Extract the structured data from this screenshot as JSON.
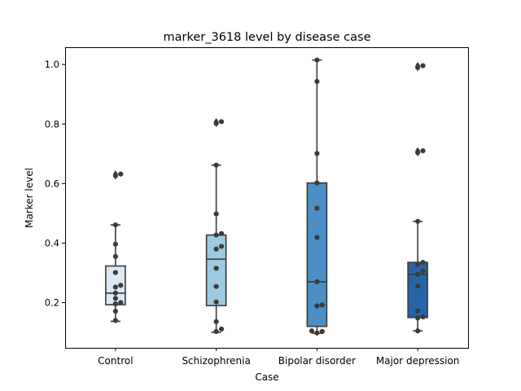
{
  "chart_data": {
    "type": "box",
    "title": "marker_3618 level by disease case",
    "xlabel": "Case",
    "ylabel": "Marker level",
    "ylim": [
      0.048,
      1.058
    ],
    "yticks": [
      0.2,
      0.4,
      0.6,
      0.8,
      1.0
    ],
    "ytick_labels": [
      "0.2",
      "0.4",
      "0.6",
      "0.8",
      "1.0"
    ],
    "grid": false,
    "categories": [
      "Control",
      "Schizophrenia",
      "Bipolar disorder",
      "Major depression"
    ],
    "colors": [
      "#dbe9f6",
      "#9ecae1",
      "#4b8fc4",
      "#2565a7"
    ],
    "box_stats": [
      {
        "q1": 0.193,
        "median": 0.232,
        "q3": 0.323,
        "whisker_low": 0.137,
        "whisker_high": 0.461,
        "fliers": [
          0.632,
          0.626
        ]
      },
      {
        "q1": 0.19,
        "median": 0.346,
        "q3": 0.427,
        "whisker_low": 0.1,
        "whisker_high": 0.662,
        "fliers": [
          0.808,
          0.802
        ]
      },
      {
        "q1": 0.12,
        "median": 0.27,
        "q3": 0.602,
        "whisker_low": 0.097,
        "whisker_high": 1.015,
        "fliers": []
      },
      {
        "q1": 0.15,
        "median": 0.295,
        "q3": 0.335,
        "whisker_low": 0.105,
        "whisker_high": 0.473,
        "fliers": [
          0.996,
          0.99,
          0.71,
          0.704
        ]
      }
    ],
    "points": [
      [
        0.632,
        0.626,
        0.461,
        0.396,
        0.355,
        0.301,
        0.258,
        0.252,
        0.232,
        0.214,
        0.2,
        0.196,
        0.171,
        0.14
      ],
      [
        0.808,
        0.802,
        0.662,
        0.498,
        0.432,
        0.427,
        0.389,
        0.38,
        0.315,
        0.254,
        0.202,
        0.136,
        0.111,
        0.103
      ],
      [
        1.015,
        0.943,
        0.701,
        0.602,
        0.517,
        0.419,
        0.27,
        0.192,
        0.189,
        0.105,
        0.103,
        0.098
      ],
      [
        0.996,
        0.99,
        0.71,
        0.704,
        0.473,
        0.335,
        0.328,
        0.306,
        0.295,
        0.256,
        0.172,
        0.152,
        0.148,
        0.105
      ]
    ]
  }
}
